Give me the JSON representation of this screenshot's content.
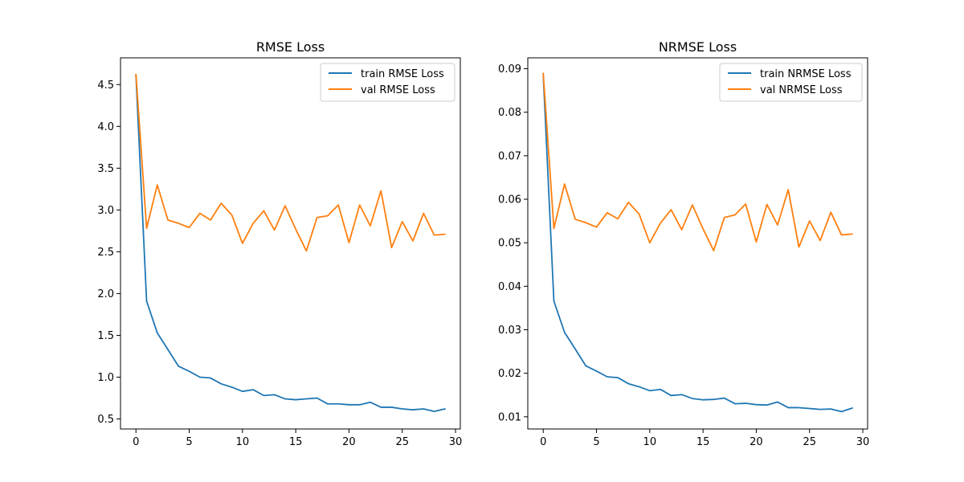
{
  "figure": {
    "background": "#ffffff"
  },
  "colors": {
    "train": "#1f77b4",
    "val": "#ff7f0e",
    "axes": "#000000"
  },
  "chart_data": [
    {
      "type": "line",
      "title": "RMSE Loss",
      "xlabel": "",
      "ylabel": "",
      "xlim": [
        -1.45,
        30.45
      ],
      "ylim": [
        0.38,
        4.82
      ],
      "xticks": [
        0,
        5,
        10,
        15,
        20,
        25,
        30
      ],
      "yticks": [
        0.5,
        1.0,
        1.5,
        2.0,
        2.5,
        3.0,
        3.5,
        4.0,
        4.5
      ],
      "ytick_labels": [
        "0.5",
        "1.0",
        "1.5",
        "2.0",
        "2.5",
        "3.0",
        "3.5",
        "4.0",
        "4.5"
      ],
      "legend_position": "upper right",
      "x": [
        0,
        1,
        2,
        3,
        4,
        5,
        6,
        7,
        8,
        9,
        10,
        11,
        12,
        13,
        14,
        15,
        16,
        17,
        18,
        19,
        20,
        21,
        22,
        23,
        24,
        25,
        26,
        27,
        28,
        29
      ],
      "series": [
        {
          "name": "train RMSE Loss",
          "color": "#1f77b4",
          "values": [
            4.61,
            1.91,
            1.53,
            1.33,
            1.13,
            1.07,
            1.0,
            0.99,
            0.92,
            0.88,
            0.83,
            0.85,
            0.78,
            0.79,
            0.74,
            0.73,
            0.74,
            0.75,
            0.68,
            0.68,
            0.67,
            0.67,
            0.7,
            0.64,
            0.64,
            0.62,
            0.61,
            0.62,
            0.59,
            0.62
          ]
        },
        {
          "name": "val RMSE Loss",
          "color": "#ff7f0e",
          "values": [
            4.62,
            2.78,
            3.3,
            2.88,
            2.84,
            2.79,
            2.96,
            2.88,
            3.08,
            2.94,
            2.6,
            2.84,
            2.99,
            2.76,
            3.05,
            2.77,
            2.51,
            2.91,
            2.93,
            3.06,
            2.61,
            3.06,
            2.81,
            3.23,
            2.55,
            2.86,
            2.63,
            2.96,
            2.7,
            2.71
          ]
        }
      ]
    },
    {
      "type": "line",
      "title": "NRMSE Loss",
      "xlabel": "",
      "ylabel": "",
      "xlim": [
        -1.45,
        30.45
      ],
      "ylim": [
        0.0072,
        0.0925
      ],
      "xticks": [
        0,
        5,
        10,
        15,
        20,
        25,
        30
      ],
      "yticks": [
        0.01,
        0.02,
        0.03,
        0.04,
        0.05,
        0.06,
        0.07,
        0.08,
        0.09
      ],
      "ytick_labels": [
        "0.01",
        "0.02",
        "0.03",
        "0.04",
        "0.05",
        "0.06",
        "0.07",
        "0.08",
        "0.09"
      ],
      "legend_position": "upper right",
      "x": [
        0,
        1,
        2,
        3,
        4,
        5,
        6,
        7,
        8,
        9,
        10,
        11,
        12,
        13,
        14,
        15,
        16,
        17,
        18,
        19,
        20,
        21,
        22,
        23,
        24,
        25,
        26,
        27,
        28,
        29
      ],
      "series": [
        {
          "name": "train NRMSE Loss",
          "color": "#1f77b4",
          "values": [
            0.0887,
            0.0366,
            0.0294,
            0.0256,
            0.0217,
            0.0205,
            0.0192,
            0.019,
            0.0176,
            0.0169,
            0.016,
            0.0163,
            0.0149,
            0.0151,
            0.0142,
            0.0139,
            0.014,
            0.0143,
            0.013,
            0.0131,
            0.0128,
            0.0127,
            0.0134,
            0.0121,
            0.0121,
            0.0119,
            0.0117,
            0.0118,
            0.0112,
            0.012
          ]
        },
        {
          "name": "val NRMSE Loss",
          "color": "#ff7f0e",
          "values": [
            0.0889,
            0.0533,
            0.0635,
            0.0554,
            0.0546,
            0.0536,
            0.0569,
            0.0555,
            0.0593,
            0.0566,
            0.05,
            0.0545,
            0.0576,
            0.053,
            0.0587,
            0.0532,
            0.0482,
            0.0558,
            0.0564,
            0.0589,
            0.0502,
            0.0588,
            0.0541,
            0.0622,
            0.049,
            0.055,
            0.0505,
            0.057,
            0.0518,
            0.052
          ]
        }
      ]
    }
  ]
}
